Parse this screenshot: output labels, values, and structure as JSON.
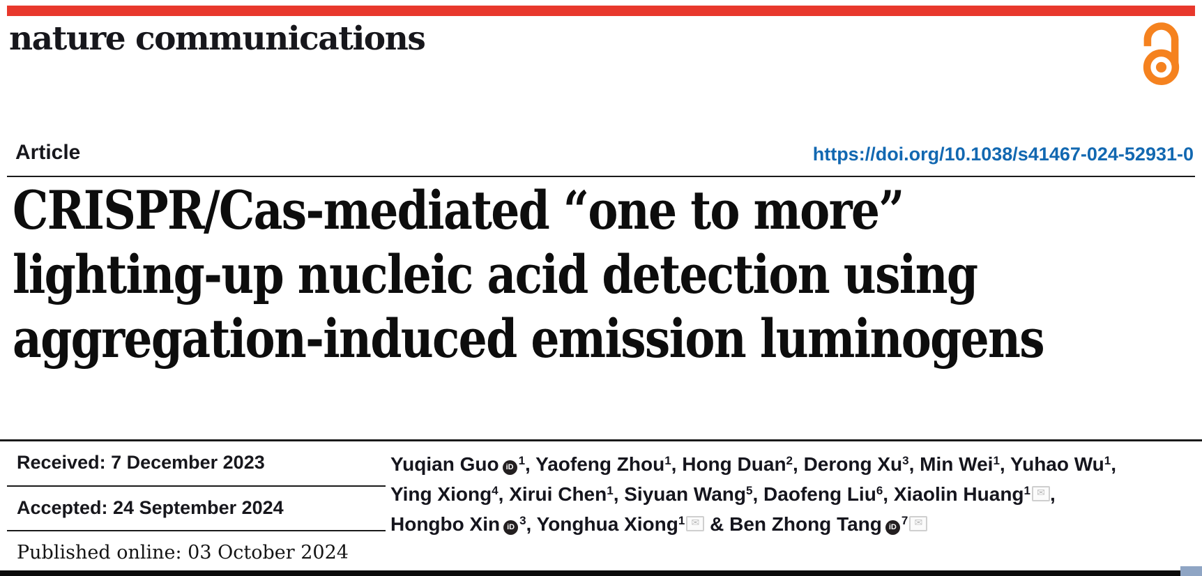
{
  "colors": {
    "accent_red": "#e8382c",
    "doi_blue": "#1268b1",
    "oa_orange": "#f5821f",
    "corner_blue": "#8fa5c4"
  },
  "journal": {
    "name": "nature communications"
  },
  "article": {
    "type_label": "Article",
    "doi": "https://doi.org/10.1038/s41467-024-52931-0",
    "title_lines": [
      "CRISPR/Cas-mediated “one to more”",
      "lighting-up nucleic acid detection using",
      "aggregation-induced emission luminogens"
    ]
  },
  "history": {
    "received": "Received: 7 December 2023",
    "accepted": "Accepted: 24 September 2024",
    "published": "Published online: 03 October 2024"
  },
  "authors": {
    "orcid_icon_label": "iD",
    "email_icon_glyph": "✉",
    "lines": [
      [
        {
          "name": "Yuqian Guo",
          "orcid": true,
          "sup": "1",
          "sep": ", "
        },
        {
          "name": "Yaofeng Zhou",
          "sup": "1",
          "sep": ", "
        },
        {
          "name": "Hong Duan",
          "sup": "2",
          "sep": ", "
        },
        {
          "name": "Derong Xu",
          "sup": "3",
          "sep": ", "
        },
        {
          "name": "Min Wei",
          "sup": "1",
          "sep": ", "
        },
        {
          "name": "Yuhao Wu",
          "sup": "1",
          "sep": ","
        }
      ],
      [
        {
          "name": "Ying Xiong",
          "sup": "4",
          "sep": ", "
        },
        {
          "name": "Xirui Chen",
          "sup": "1",
          "sep": ", "
        },
        {
          "name": "Siyuan Wang",
          "sup": "5",
          "sep": ", "
        },
        {
          "name": "Daofeng Liu",
          "sup": "6",
          "sep": ", "
        },
        {
          "name": "Xiaolin Huang",
          "sup": "1",
          "email": true,
          "sep": ","
        }
      ],
      [
        {
          "name": "Hongbo Xin",
          "orcid": true,
          "sup": "3",
          "sep": ", "
        },
        {
          "name": "Yonghua Xiong",
          "sup": "1",
          "email": true,
          "sep": " & "
        },
        {
          "name": "Ben Zhong Tang",
          "orcid": true,
          "sup": "7",
          "email": true,
          "sep": ""
        }
      ]
    ]
  }
}
